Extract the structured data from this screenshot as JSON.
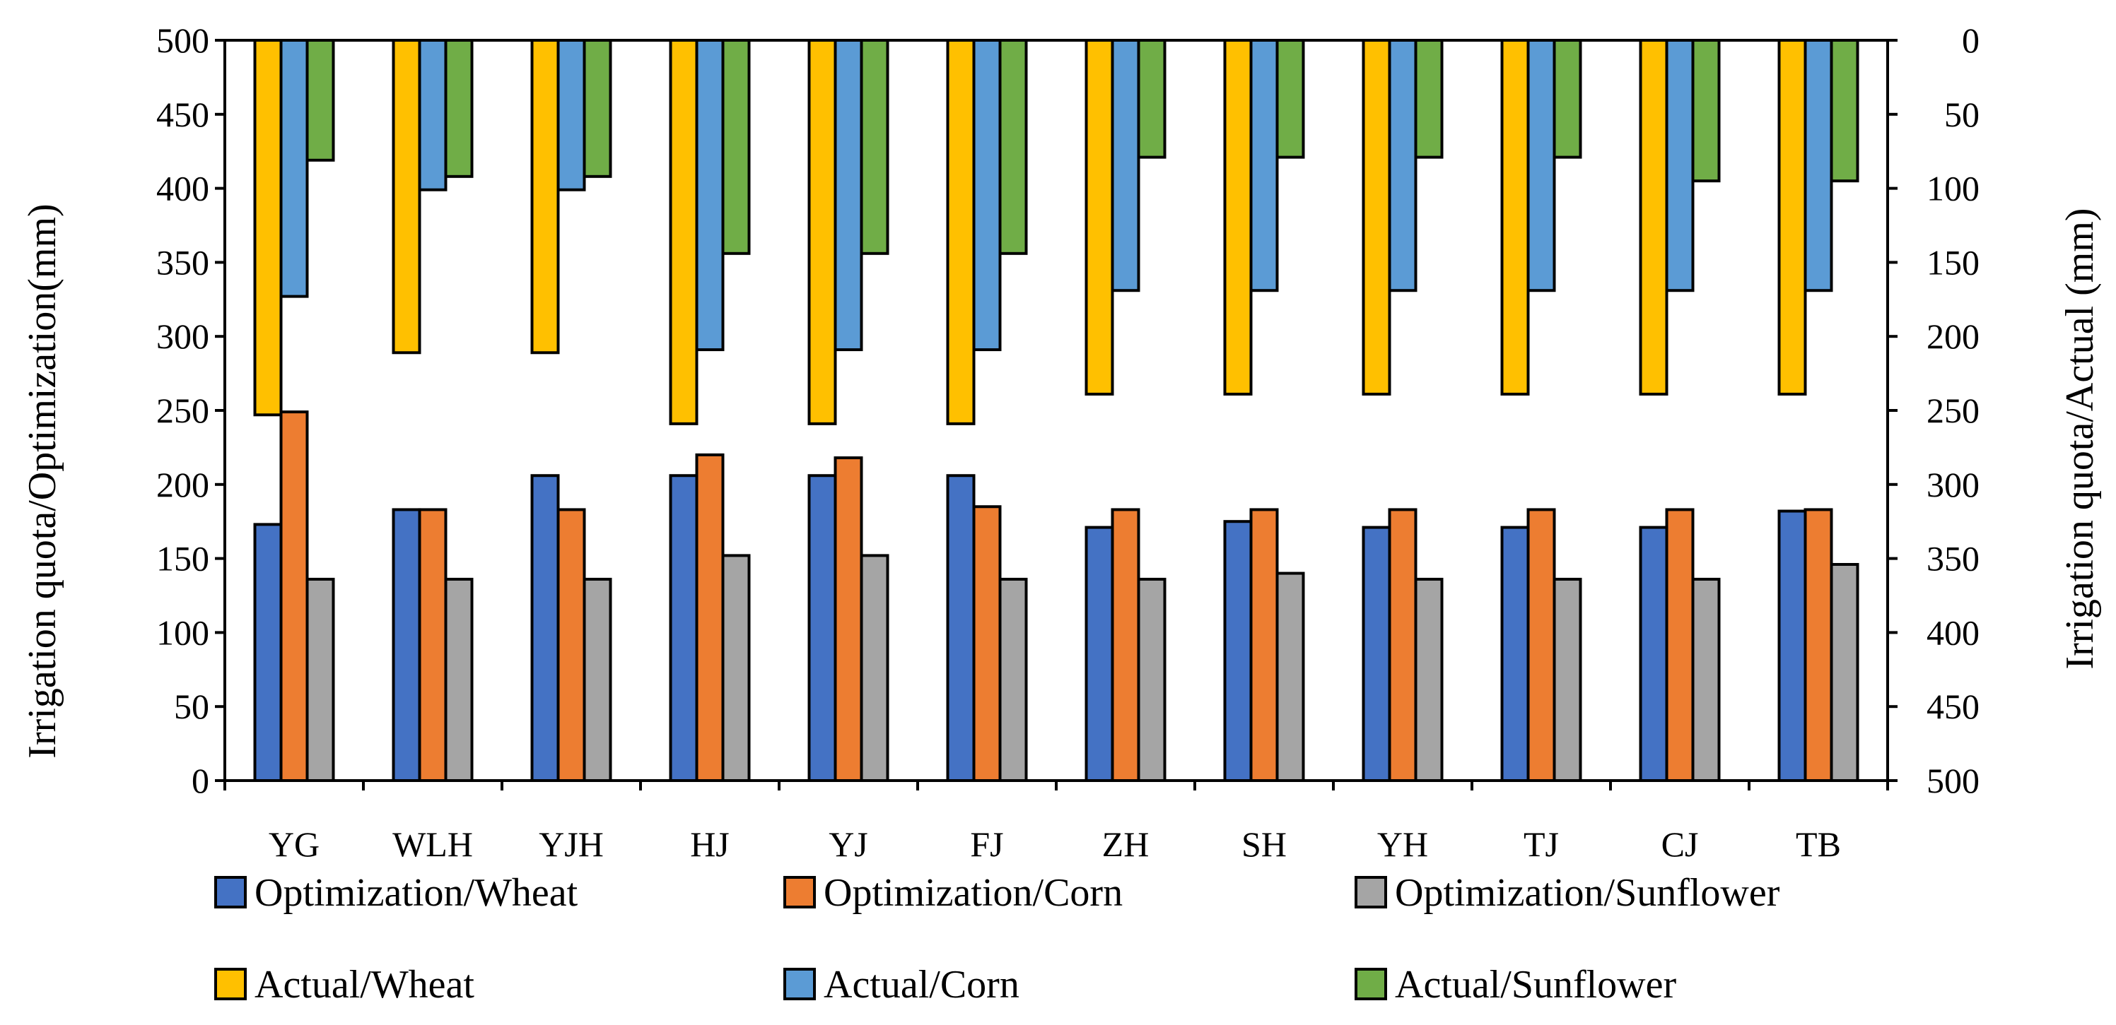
{
  "chart_data": {
    "type": "bar",
    "title": "",
    "categories": [
      "YG",
      "WLH",
      "YJH",
      "HJ",
      "YJ",
      "FJ",
      "ZH",
      "SH",
      "YH",
      "TJ",
      "CJ",
      "TB"
    ],
    "left_axis": {
      "label": "Irrigation quota/Optimization(mm)",
      "ylim": [
        0,
        500
      ],
      "ticks": [
        "0",
        "50",
        "100",
        "150",
        "200",
        "250",
        "300",
        "350",
        "400",
        "450",
        "500"
      ]
    },
    "right_axis": {
      "label": "Irrigation quota/Actual (mm)",
      "ylim": [
        0,
        500
      ],
      "inverted": true,
      "ticks": [
        "0",
        "50",
        "100",
        "150",
        "200",
        "250",
        "300",
        "350",
        "400",
        "450",
        "500"
      ]
    },
    "series": [
      {
        "name": "Optimization/Wheat",
        "axis": "left",
        "color": "#4472C4",
        "values": [
          173,
          183,
          206,
          206,
          206,
          206,
          171,
          175,
          171,
          171,
          171,
          182
        ]
      },
      {
        "name": "Optimization/Corn",
        "axis": "left",
        "color": "#ED7D31",
        "values": [
          249,
          183,
          183,
          220,
          218,
          185,
          183,
          183,
          183,
          183,
          183,
          183
        ]
      },
      {
        "name": "Optimization/Sunflower",
        "axis": "left",
        "color": "#A5A5A5",
        "values": [
          136,
          136,
          136,
          152,
          152,
          136,
          136,
          140,
          136,
          136,
          136,
          146
        ]
      },
      {
        "name": "Actual/Wheat",
        "axis": "right",
        "color": "#FFC000",
        "values": [
          253,
          211,
          211,
          259,
          259,
          259,
          239,
          239,
          239,
          239,
          239,
          239
        ]
      },
      {
        "name": "Actual/Corn",
        "axis": "right",
        "color": "#5B9BD5",
        "values": [
          173,
          101,
          101,
          209,
          209,
          209,
          169,
          169,
          169,
          169,
          169,
          169
        ]
      },
      {
        "name": "Actual/Sunflower",
        "axis": "right",
        "color": "#70AD47",
        "values": [
          81,
          92,
          92,
          144,
          144,
          144,
          79,
          79,
          79,
          79,
          95,
          95
        ]
      }
    ],
    "legend": {
      "placement": "bottom",
      "entries": [
        "Optimization/Wheat",
        "Optimization/Corn",
        "Optimization/Sunflower",
        "Actual/Wheat",
        "Actual/Corn",
        "Actual/Sunflower"
      ]
    },
    "grid": false
  }
}
